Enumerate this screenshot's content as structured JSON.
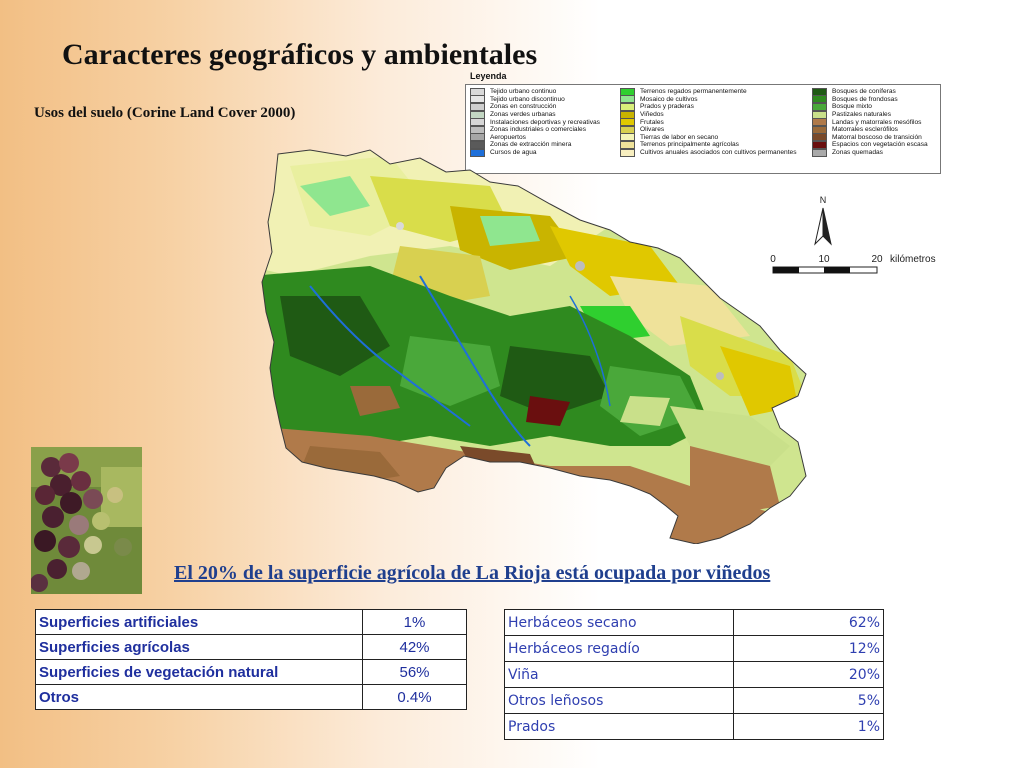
{
  "title": "Caracteres geográficos y ambientales",
  "subtitle": "Usos del suelo (Corine Land Cover 2000)",
  "legend": {
    "title": "Leyenda",
    "columns": [
      [
        {
          "label": "Tejido urbano continuo",
          "color": "#d9d9d9"
        },
        {
          "label": "Tejido urbano discontinuo",
          "color": "#e6e6e6"
        },
        {
          "label": "Zonas en construcción",
          "color": "#cfcfcf"
        },
        {
          "label": "Zonas verdes urbanas",
          "color": "#c2d6c2"
        },
        {
          "label": "Instalaciones deportivas y recreativas",
          "color": "#d6d6d6"
        },
        {
          "label": "Zonas industriales o comerciales",
          "color": "#bdbdbd"
        },
        {
          "label": "Aeropuertos",
          "color": "#a6a6a6"
        },
        {
          "label": "Zonas de extracción minera",
          "color": "#5a5a5a"
        },
        {
          "label": "Cursos de agua",
          "color": "#1e6fd9"
        }
      ],
      [
        {
          "label": "Terrenos regados permanentemente",
          "color": "#2fcf2f"
        },
        {
          "label": "Mosaico de cultivos",
          "color": "#8fe68f"
        },
        {
          "label": "Prados y praderas",
          "color": "#d9ef7a"
        },
        {
          "label": "Viñedos",
          "color": "#c9b400"
        },
        {
          "label": "Frutales",
          "color": "#e0c800"
        },
        {
          "label": "Olivares",
          "color": "#d8d050"
        },
        {
          "label": "Tierras de labor en secano",
          "color": "#f5f5b8"
        },
        {
          "label": "Terrenos principalmente agrícolas",
          "color": "#efe29a"
        },
        {
          "label": "Cultivos anuales asociados con cultivos permanentes",
          "color": "#f8efc0"
        }
      ],
      [
        {
          "label": "Bosques de coníferas",
          "color": "#1f5a14"
        },
        {
          "label": "Bosques de frondosas",
          "color": "#2f8a1f"
        },
        {
          "label": "Bosque mixto",
          "color": "#4aa83a"
        },
        {
          "label": "Pastizales naturales",
          "color": "#c9e08a"
        },
        {
          "label": "Landas y matorrales mesófilos",
          "color": "#b07a4a"
        },
        {
          "label": "Matorrales esclerófilos",
          "color": "#9a6a3a"
        },
        {
          "label": "Matorral boscoso de transición",
          "color": "#7a4a2a"
        },
        {
          "label": "Espacios con vegetación escasa",
          "color": "#6a0f0f"
        },
        {
          "label": "Zonas quemadas",
          "color": "#aaaaaa"
        }
      ]
    ]
  },
  "map": {
    "north_label": "N",
    "scale_labels": [
      "0",
      "10",
      "20"
    ],
    "scale_unit": "kilómetros"
  },
  "caption": "El 20% de la superficie agrícola de La Rioja está ocupada por viñedos",
  "table_left": [
    {
      "label": "Superficies artificiales",
      "value": "1%"
    },
    {
      "label": "Superficies agrícolas",
      "value": "42%"
    },
    {
      "label": "Superficies de vegetación natural",
      "value": "56%"
    },
    {
      "label": "Otros",
      "value": "0.4%"
    }
  ],
  "table_right": [
    {
      "label": "Herbáceos secano",
      "value": "62%"
    },
    {
      "label": "Herbáceos regadío",
      "value": "12%"
    },
    {
      "label": "Viña",
      "value": "20%"
    },
    {
      "label": "Otros leñosos",
      "value": "5%"
    },
    {
      "label": "Prados",
      "value": "1%"
    }
  ]
}
